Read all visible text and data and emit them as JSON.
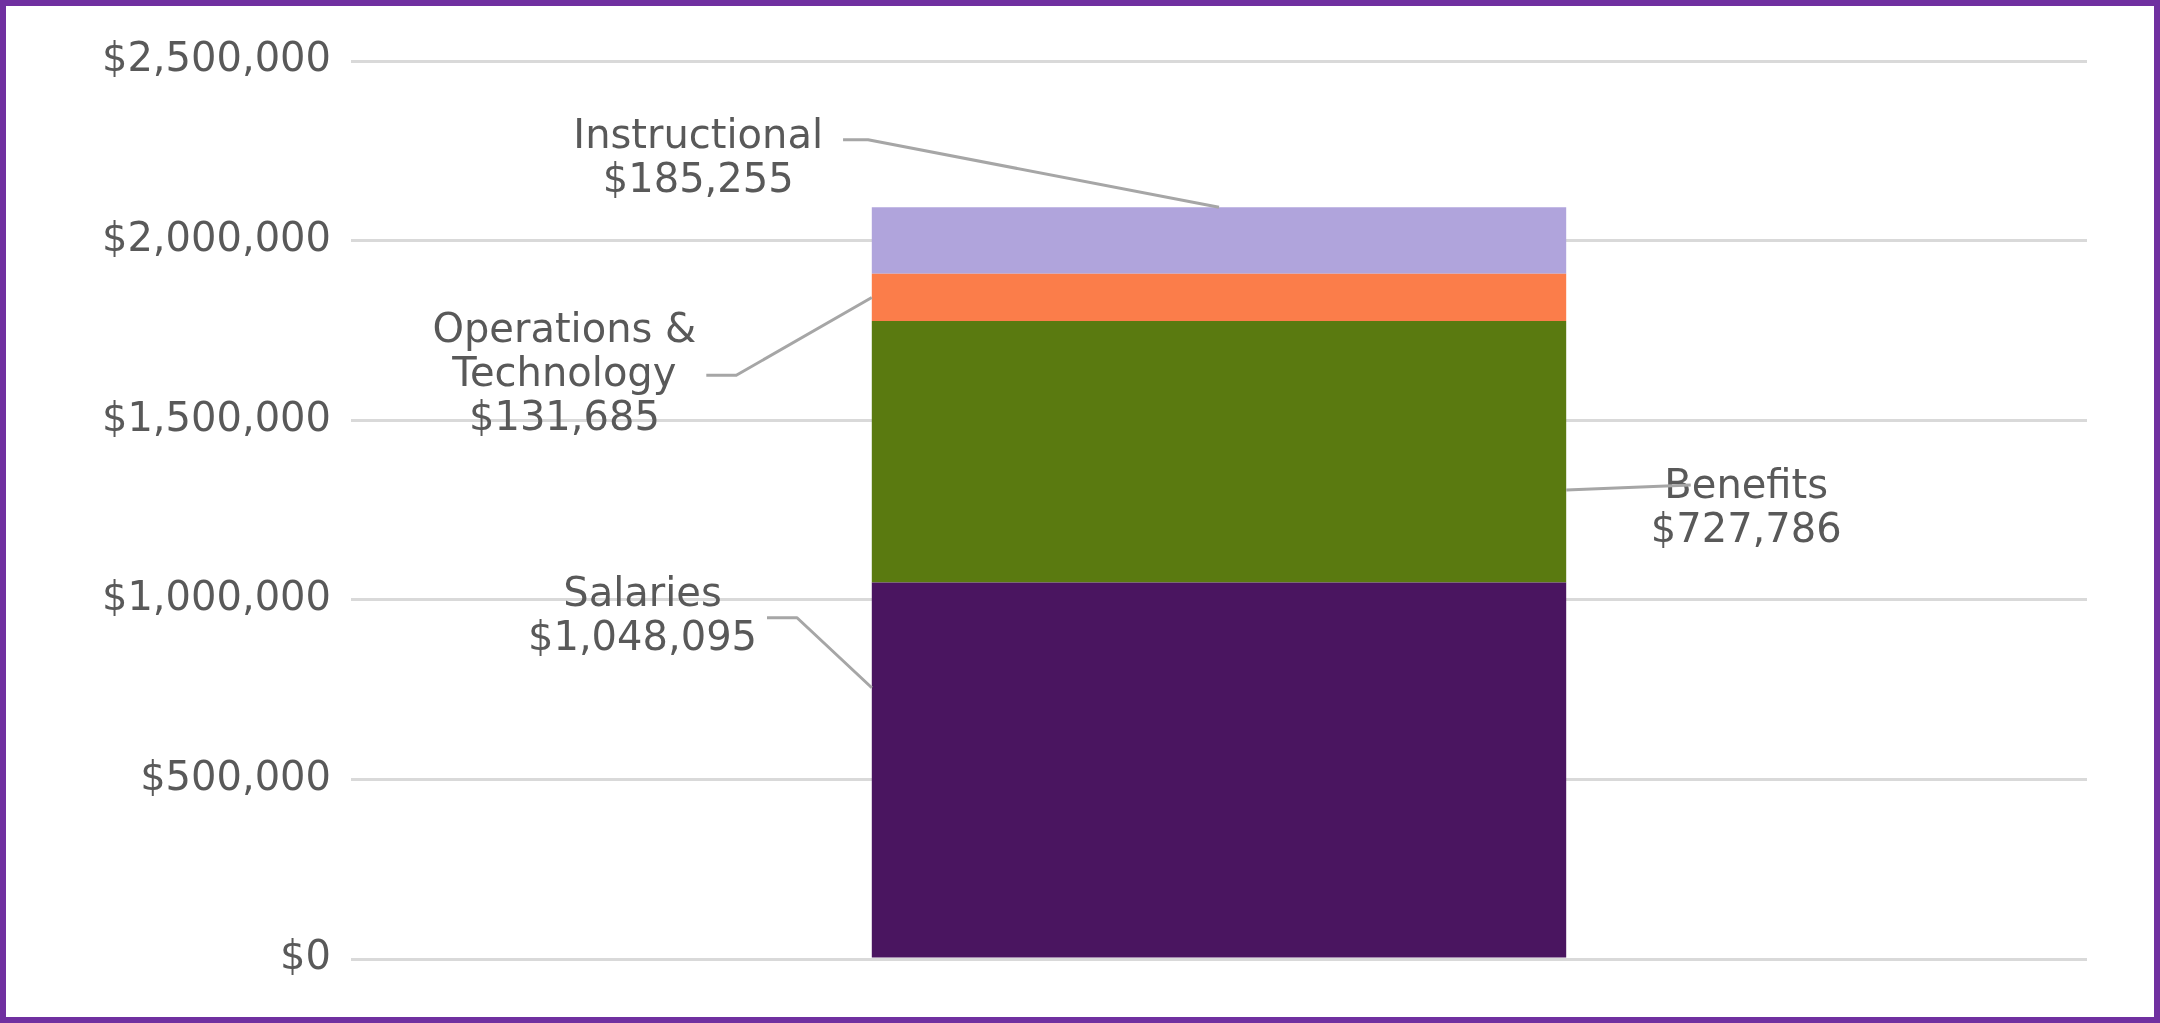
{
  "chart_data": {
    "type": "bar",
    "stacked": true,
    "categories": [
      null
    ],
    "series": [
      {
        "name": "Salaries",
        "color": "#4a1560",
        "values": [
          1048095
        ],
        "value_labels": [
          "$1,048,095"
        ]
      },
      {
        "name": "Benefits",
        "color": "#5a7a10",
        "values": [
          727786
        ],
        "value_labels": [
          "$727,786"
        ]
      },
      {
        "name": "Operations & Technology",
        "color": "#fb7d4a",
        "values": [
          131685
        ],
        "value_labels": [
          "$131,685"
        ]
      },
      {
        "name": "Instructional",
        "color": "#b0a4dc",
        "values": [
          185255
        ],
        "value_labels": [
          "$185,255"
        ]
      }
    ],
    "ylim": [
      0,
      2500000
    ],
    "yticks": [
      {
        "value": 0,
        "label": "$0"
      },
      {
        "value": 500000,
        "label": "$500,000"
      },
      {
        "value": 1000000,
        "label": "$1,000,000"
      },
      {
        "value": 1500000,
        "label": "$1,500,000"
      },
      {
        "value": 2000000,
        "label": "$2,000,000"
      },
      {
        "value": 2500000,
        "label": "$2,500,000"
      }
    ],
    "grid": "y",
    "legend": false,
    "tick_labels": "y"
  }
}
